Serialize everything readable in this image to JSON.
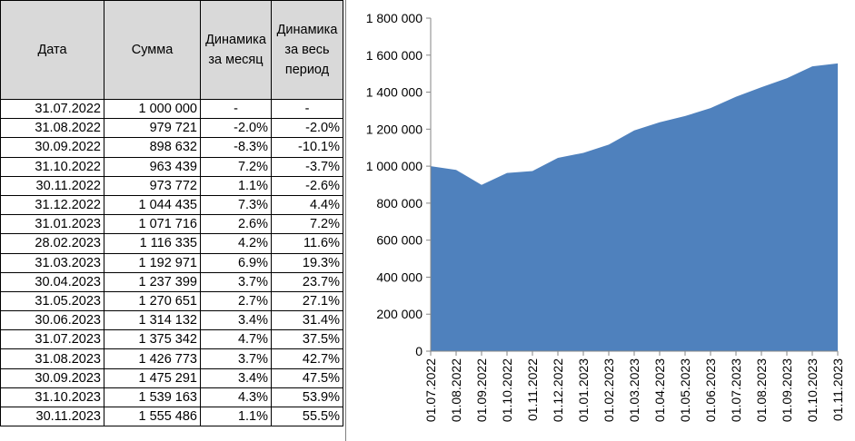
{
  "table": {
    "headers": [
      "Дата",
      "Сумма",
      "Динамика за месяц",
      "Динамика за весь период"
    ],
    "rows": [
      [
        "31.07.2022",
        "1 000 000",
        "-",
        "-"
      ],
      [
        "31.08.2022",
        "979 721",
        "-2.0%",
        "-2.0%"
      ],
      [
        "30.09.2022",
        "898 632",
        "-8.3%",
        "-10.1%"
      ],
      [
        "31.10.2022",
        "963 439",
        "7.2%",
        "-3.7%"
      ],
      [
        "30.11.2022",
        "973 772",
        "1.1%",
        "-2.6%"
      ],
      [
        "31.12.2022",
        "1 044 435",
        "7.3%",
        "4.4%"
      ],
      [
        "31.01.2023",
        "1 071 716",
        "2.6%",
        "7.2%"
      ],
      [
        "28.02.2023",
        "1 116 335",
        "4.2%",
        "11.6%"
      ],
      [
        "31.03.2023",
        "1 192 971",
        "6.9%",
        "19.3%"
      ],
      [
        "30.04.2023",
        "1 237 399",
        "3.7%",
        "23.7%"
      ],
      [
        "31.05.2023",
        "1 270 651",
        "2.7%",
        "27.1%"
      ],
      [
        "30.06.2023",
        "1 314 132",
        "3.4%",
        "31.4%"
      ],
      [
        "31.07.2023",
        "1 375 342",
        "4.7%",
        "37.5%"
      ],
      [
        "31.08.2023",
        "1 426 773",
        "3.7%",
        "42.7%"
      ],
      [
        "30.09.2023",
        "1 475 291",
        "3.4%",
        "47.5%"
      ],
      [
        "31.10.2023",
        "1 539 163",
        "4.3%",
        "53.9%"
      ],
      [
        "30.11.2023",
        "1 555 486",
        "1.1%",
        "55.5%"
      ]
    ]
  },
  "chart_data": {
    "type": "area",
    "categories": [
      "01.07.2022",
      "01.08.2022",
      "01.09.2022",
      "01.10.2022",
      "01.11.2022",
      "01.12.2022",
      "01.01.2023",
      "01.02.2023",
      "01.03.2023",
      "01.04.2023",
      "01.05.2023",
      "01.06.2023",
      "01.07.2023",
      "01.08.2023",
      "01.09.2023",
      "01.10.2023",
      "01.11.2023"
    ],
    "series": [
      {
        "values": [
          1000000,
          979721,
          898632,
          963439,
          973772,
          1044435,
          1071716,
          1116335,
          1192971,
          1237399,
          1270651,
          1314132,
          1375342,
          1426773,
          1475291,
          1539163,
          1555486
        ]
      }
    ],
    "y_ticks": [
      0,
      200000,
      400000,
      600000,
      800000,
      1000000,
      1200000,
      1400000,
      1600000,
      1800000
    ],
    "y_tick_labels": [
      "0",
      "200 000",
      "400 000",
      "600 000",
      "800 000",
      "1 000 000",
      "1 200 000",
      "1 400 000",
      "1 600 000",
      "1 800 000"
    ],
    "ylim": [
      0,
      1800000
    ],
    "grid": false,
    "legend": "none",
    "title": "",
    "xlabel": "",
    "ylabel": "",
    "colors": {
      "area": "#4f81bd",
      "axis": "#868686"
    }
  }
}
